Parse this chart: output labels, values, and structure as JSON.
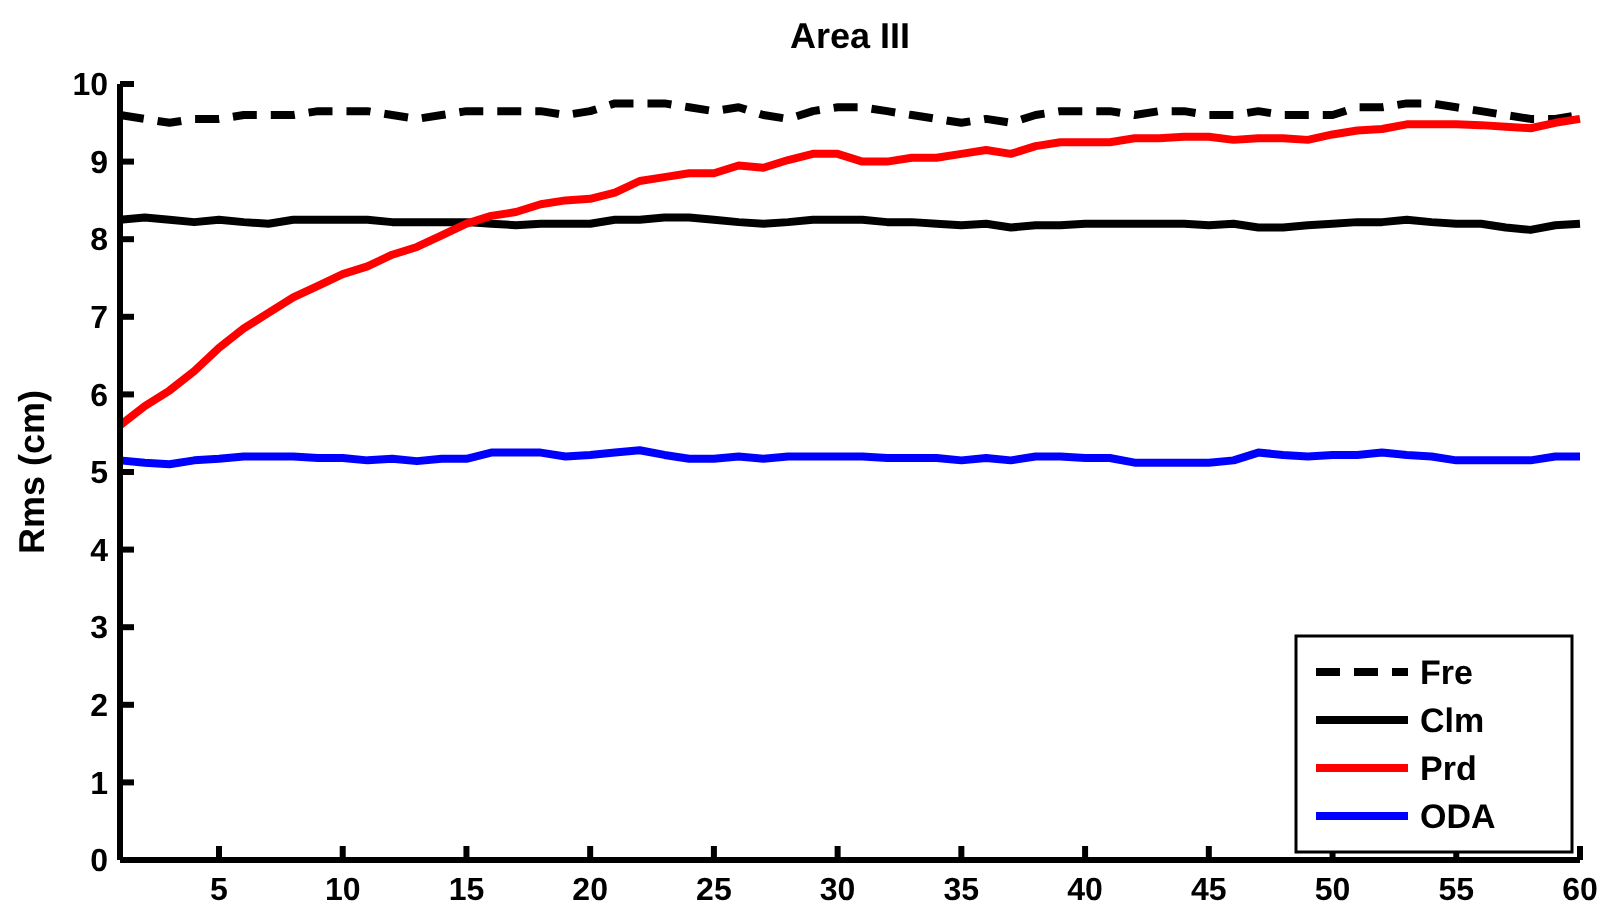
{
  "chart_data": {
    "type": "line",
    "title": "Area III",
    "ylabel": "Rms (cm)",
    "x": [
      1,
      2,
      3,
      4,
      5,
      6,
      7,
      8,
      9,
      10,
      11,
      12,
      13,
      14,
      15,
      16,
      17,
      18,
      19,
      20,
      21,
      22,
      23,
      24,
      25,
      26,
      27,
      28,
      29,
      30,
      31,
      32,
      33,
      34,
      35,
      36,
      37,
      38,
      39,
      40,
      41,
      42,
      43,
      44,
      45,
      46,
      47,
      48,
      49,
      50,
      51,
      52,
      53,
      54,
      55,
      56,
      57,
      58,
      59,
      60
    ],
    "series": [
      {
        "name": "Fre",
        "color": "#000000",
        "line_style": "dashed",
        "values": [
          9.6,
          9.55,
          9.5,
          9.55,
          9.55,
          9.6,
          9.6,
          9.6,
          9.65,
          9.65,
          9.65,
          9.6,
          9.55,
          9.6,
          9.65,
          9.65,
          9.65,
          9.65,
          9.6,
          9.65,
          9.75,
          9.75,
          9.75,
          9.7,
          9.65,
          9.7,
          9.6,
          9.55,
          9.65,
          9.7,
          9.7,
          9.65,
          9.6,
          9.55,
          9.5,
          9.55,
          9.5,
          9.6,
          9.65,
          9.65,
          9.65,
          9.6,
          9.65,
          9.65,
          9.6,
          9.6,
          9.65,
          9.6,
          9.6,
          9.6,
          9.7,
          9.7,
          9.75,
          9.75,
          9.7,
          9.65,
          9.6,
          9.55,
          9.55,
          9.6
        ]
      },
      {
        "name": "Clm",
        "color": "#000000",
        "line_style": "solid",
        "values": [
          8.25,
          8.28,
          8.25,
          8.22,
          8.25,
          8.22,
          8.2,
          8.25,
          8.25,
          8.25,
          8.25,
          8.22,
          8.22,
          8.22,
          8.22,
          8.2,
          8.18,
          8.2,
          8.2,
          8.2,
          8.25,
          8.25,
          8.28,
          8.28,
          8.25,
          8.22,
          8.2,
          8.22,
          8.25,
          8.25,
          8.25,
          8.22,
          8.22,
          8.2,
          8.18,
          8.2,
          8.15,
          8.18,
          8.18,
          8.2,
          8.2,
          8.2,
          8.2,
          8.2,
          8.18,
          8.2,
          8.15,
          8.15,
          8.18,
          8.2,
          8.22,
          8.22,
          8.25,
          8.22,
          8.2,
          8.2,
          8.15,
          8.12,
          8.18,
          8.2
        ]
      },
      {
        "name": "Prd",
        "color": "#ff0000",
        "line_style": "solid",
        "values": [
          5.6,
          5.85,
          6.05,
          6.3,
          6.6,
          6.85,
          7.05,
          7.25,
          7.4,
          7.55,
          7.65,
          7.8,
          7.9,
          8.05,
          8.2,
          8.3,
          8.35,
          8.45,
          8.5,
          8.52,
          8.6,
          8.75,
          8.8,
          8.85,
          8.85,
          8.95,
          8.92,
          9.02,
          9.1,
          9.1,
          9.0,
          9.0,
          9.05,
          9.05,
          9.1,
          9.15,
          9.1,
          9.2,
          9.25,
          9.25,
          9.25,
          9.3,
          9.3,
          9.32,
          9.32,
          9.28,
          9.3,
          9.3,
          9.28,
          9.35,
          9.4,
          9.42,
          9.48,
          9.48,
          9.48,
          9.47,
          9.45,
          9.43,
          9.5,
          9.55
        ]
      },
      {
        "name": "ODA",
        "color": "#0000ff",
        "line_style": "solid",
        "values": [
          5.15,
          5.12,
          5.1,
          5.15,
          5.17,
          5.2,
          5.2,
          5.2,
          5.18,
          5.18,
          5.15,
          5.17,
          5.14,
          5.17,
          5.17,
          5.25,
          5.25,
          5.25,
          5.2,
          5.22,
          5.25,
          5.28,
          5.22,
          5.17,
          5.17,
          5.2,
          5.17,
          5.2,
          5.2,
          5.2,
          5.2,
          5.18,
          5.18,
          5.18,
          5.15,
          5.18,
          5.15,
          5.2,
          5.2,
          5.18,
          5.18,
          5.12,
          5.12,
          5.12,
          5.12,
          5.15,
          5.25,
          5.22,
          5.2,
          5.22,
          5.22,
          5.25,
          5.22,
          5.2,
          5.15,
          5.15,
          5.15,
          5.15,
          5.2,
          5.2
        ]
      }
    ],
    "xlim": [
      1,
      60
    ],
    "xticks": [
      5,
      10,
      15,
      20,
      25,
      30,
      35,
      40,
      45,
      50,
      55,
      60
    ],
    "ylim": [
      0,
      10
    ],
    "yticks": [
      0,
      1,
      2,
      3,
      4,
      5,
      6,
      7,
      8,
      9,
      10
    ],
    "grid": false,
    "legend": "bottom right"
  }
}
